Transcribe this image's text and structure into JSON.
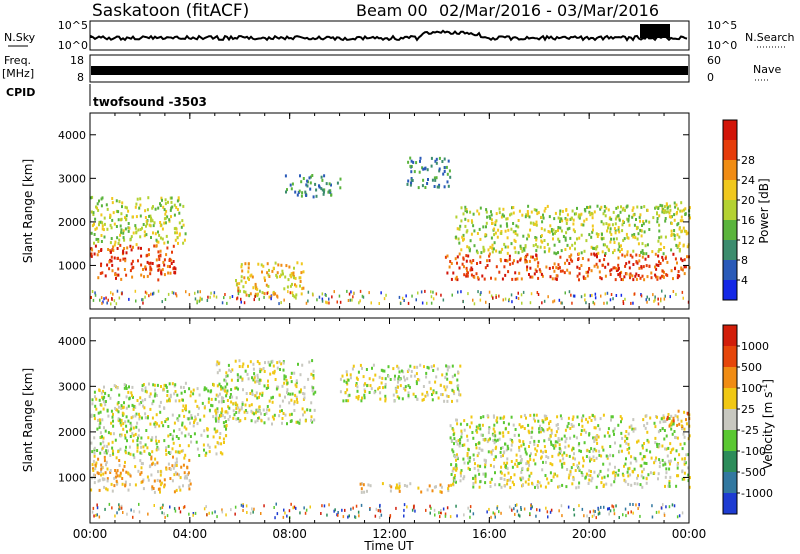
{
  "header": {
    "station": "Saskatoon (fitACF)",
    "beam": "Beam 00",
    "dates": "02/Mar/2016 - 03/Mar/2016"
  },
  "top_panels": {
    "nsky_label": "N.Sky",
    "nsky_ticks": [
      "10^5",
      "10^0"
    ],
    "nsky_right_ticks": [
      "10^5",
      "10^0"
    ],
    "nsearch_label": "N.Search",
    "freq_label": "Freq.",
    "freq_unit": "[MHz]",
    "freq_ticks": [
      "18",
      "8"
    ],
    "nave_ticks": [
      "60",
      "0"
    ],
    "nave_label": "Nave",
    "cpid_label": "CPID",
    "cpid_value": "twofsound -3503"
  },
  "chart_data": [
    {
      "type": "heatmap",
      "parameter": "Power",
      "ylabel": "Slant Range [km]",
      "ylim": [
        0,
        4500
      ],
      "yticks": [
        "1000",
        "2000",
        "3000",
        "4000"
      ],
      "xlim": [
        0,
        24
      ],
      "colorbar_label": "Power [dB]",
      "colorbar_ticks": [
        "4",
        "8",
        "12",
        "16",
        "20",
        "24",
        "28"
      ],
      "colors": [
        "#1428e6",
        "#2a5ab8",
        "#3c8c6e",
        "#5ab43c",
        "#b4d232",
        "#f0c81e",
        "#f08c14",
        "#e63c0a",
        "#d21408"
      ],
      "regions": [
        {
          "t0": 0.0,
          "t1": 3.4,
          "r0": 700,
          "r1": 1500,
          "level": 7
        },
        {
          "t0": 0.0,
          "t1": 3.8,
          "r0": 1500,
          "r1": 2600,
          "level": 4
        },
        {
          "t0": 5.8,
          "t1": 8.6,
          "r0": 300,
          "r1": 1100,
          "level": 5
        },
        {
          "t0": 7.8,
          "t1": 10.0,
          "r0": 2600,
          "r1": 3100,
          "level": 2
        },
        {
          "t0": 12.6,
          "t1": 14.4,
          "r0": 2800,
          "r1": 3500,
          "level": 2
        },
        {
          "t0": 14.2,
          "t1": 24.0,
          "r0": 700,
          "r1": 1300,
          "level": 7
        },
        {
          "t0": 14.6,
          "t1": 24.0,
          "r0": 1300,
          "r1": 2400,
          "level": 4
        },
        {
          "t0": 22.8,
          "t1": 24.0,
          "r0": 2100,
          "r1": 2500,
          "level": 4
        }
      ]
    },
    {
      "type": "heatmap",
      "parameter": "Velocity",
      "ylabel": "Slant Range [km]",
      "ylim": [
        0,
        4500
      ],
      "yticks": [
        "1000",
        "2000",
        "3000",
        "4000"
      ],
      "xlim": [
        0,
        24
      ],
      "xticks": [
        "00:00",
        "04:00",
        "08:00",
        "12:00",
        "16:00",
        "20:00",
        "00:00"
      ],
      "xlabel": "Time UT",
      "colorbar_label": "Velocity [m s",
      "colorbar_label_sup": "-1",
      "colorbar_label_tail": "]",
      "colorbar_ticks": [
        "1000",
        "500",
        "100",
        "25",
        "-25",
        "-100",
        "-500",
        "-1000"
      ],
      "colors": [
        "#1e3cd2",
        "#3278a0",
        "#2c8c5a",
        "#5ac832",
        "#c8c8c0",
        "#f0c814",
        "#f08c14",
        "#e6460a",
        "#d21e0a"
      ],
      "regions": [
        {
          "t0": 0.0,
          "t1": 4.0,
          "r0": 700,
          "r1": 1500,
          "level": 5
        },
        {
          "t0": 0.0,
          "t1": 5.5,
          "r0": 1500,
          "r1": 3100,
          "level": 4
        },
        {
          "t0": 5.0,
          "t1": 9.0,
          "r0": 2200,
          "r1": 3600,
          "level": 4
        },
        {
          "t0": 10.0,
          "t1": 14.8,
          "r0": 2700,
          "r1": 3500,
          "level": 4
        },
        {
          "t0": 10.8,
          "t1": 14.6,
          "r0": 700,
          "r1": 900,
          "level": 5
        },
        {
          "t0": 14.4,
          "t1": 24.0,
          "r0": 800,
          "r1": 2400,
          "level": 4
        },
        {
          "t0": 23.0,
          "t1": 24.0,
          "r0": 2100,
          "r1": 2500,
          "level": 6
        }
      ]
    }
  ]
}
